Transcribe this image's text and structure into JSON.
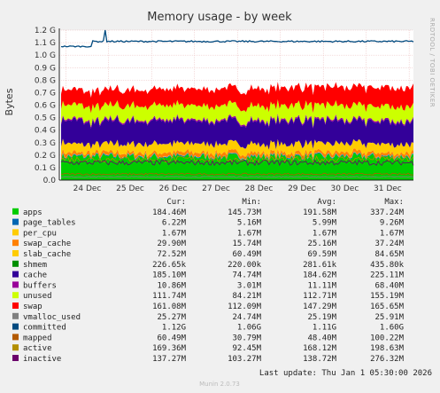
{
  "chart_data": {
    "type": "area",
    "title": "Memory usage - by week",
    "ylabel": "Bytes",
    "side_label": "RRDTOOL / TOBI OETIKER",
    "ylim": [
      0,
      1.2
    ],
    "yunit": "G",
    "yticks": [
      "0.0",
      "0.1 G",
      "0.2 G",
      "0.3 G",
      "0.4 G",
      "0.5 G",
      "0.6 G",
      "0.7 G",
      "0.8 G",
      "0.9 G",
      "1.0 G",
      "1.1 G",
      "1.2 G"
    ],
    "xticks": [
      "24 Dec",
      "25 Dec",
      "26 Dec",
      "27 Dec",
      "28 Dec",
      "29 Dec",
      "30 Dec",
      "31 Dec"
    ],
    "grid": true,
    "columns": [
      "Cur:",
      "Min:",
      "Avg:",
      "Max:"
    ],
    "series": [
      {
        "name": "apps",
        "color": "#00cc00",
        "cur": "184.46M",
        "min": "145.73M",
        "avg": "191.58M",
        "max": "337.24M",
        "avg_g": 0.19,
        "stacked": true
      },
      {
        "name": "page_tables",
        "color": "#0066b3",
        "cur": "6.22M",
        "min": "5.16M",
        "avg": "5.99M",
        "max": "9.26M",
        "avg_g": 0.006,
        "stacked": true
      },
      {
        "name": "per_cpu",
        "color": "#ffcc00",
        "cur": "1.67M",
        "min": "1.67M",
        "avg": "1.67M",
        "max": "1.67M",
        "avg_g": 0.002,
        "stacked": true
      },
      {
        "name": "swap_cache",
        "color": "#ff8000",
        "cur": "29.90M",
        "min": "15.74M",
        "avg": "25.16M",
        "max": "37.24M",
        "avg_g": 0.025,
        "stacked": true
      },
      {
        "name": "slab_cache",
        "color": "#ffcc00",
        "cur": "72.52M",
        "min": "60.49M",
        "avg": "69.59M",
        "max": "84.65M",
        "avg_g": 0.07,
        "stacked": true
      },
      {
        "name": "shmem",
        "color": "#008f00",
        "cur": "226.65k",
        "min": "220.00k",
        "avg": "281.61k",
        "max": "435.80k",
        "avg_g": 0.0003,
        "stacked": true
      },
      {
        "name": "cache",
        "color": "#330099",
        "cur": "185.10M",
        "min": "74.74M",
        "avg": "184.62M",
        "max": "225.11M",
        "avg_g": 0.185,
        "stacked": true
      },
      {
        "name": "buffers",
        "color": "#990099",
        "cur": "10.86M",
        "min": "3.01M",
        "avg": "11.11M",
        "max": "68.40M",
        "avg_g": 0.011,
        "stacked": true
      },
      {
        "name": "unused",
        "color": "#ccff00",
        "cur": "111.74M",
        "min": "84.21M",
        "avg": "112.71M",
        "max": "155.19M",
        "avg_g": 0.113,
        "stacked": true
      },
      {
        "name": "swap",
        "color": "#ff0000",
        "cur": "161.08M",
        "min": "112.09M",
        "avg": "147.29M",
        "max": "165.65M",
        "avg_g": 0.147,
        "stacked": true
      },
      {
        "name": "vmalloc_used",
        "color": "#808080",
        "cur": "25.27M",
        "min": "24.74M",
        "avg": "25.19M",
        "max": "25.91M",
        "avg_g": 0.025,
        "stacked": false
      },
      {
        "name": "committed",
        "color": "#004a7f",
        "cur": "1.12G",
        "min": "1.06G",
        "avg": "1.11G",
        "max": "1.60G",
        "avg_g": 1.11,
        "stacked": false
      },
      {
        "name": "mapped",
        "color": "#b35a00",
        "cur": "60.49M",
        "min": "30.79M",
        "avg": "48.40M",
        "max": "100.22M",
        "avg_g": 0.048,
        "stacked": false
      },
      {
        "name": "active",
        "color": "#b38f00",
        "cur": "169.36M",
        "min": "92.45M",
        "avg": "168.12M",
        "max": "198.63M",
        "avg_g": 0.168,
        "stacked": false
      },
      {
        "name": "inactive",
        "color": "#6b006b",
        "cur": "137.27M",
        "min": "103.27M",
        "avg": "138.72M",
        "max": "276.32M",
        "avg_g": 0.139,
        "stacked": false
      }
    ],
    "last_update": "Last update: Thu Jan  1 05:30:00 2026",
    "footer": "Munin 2.0.73"
  }
}
